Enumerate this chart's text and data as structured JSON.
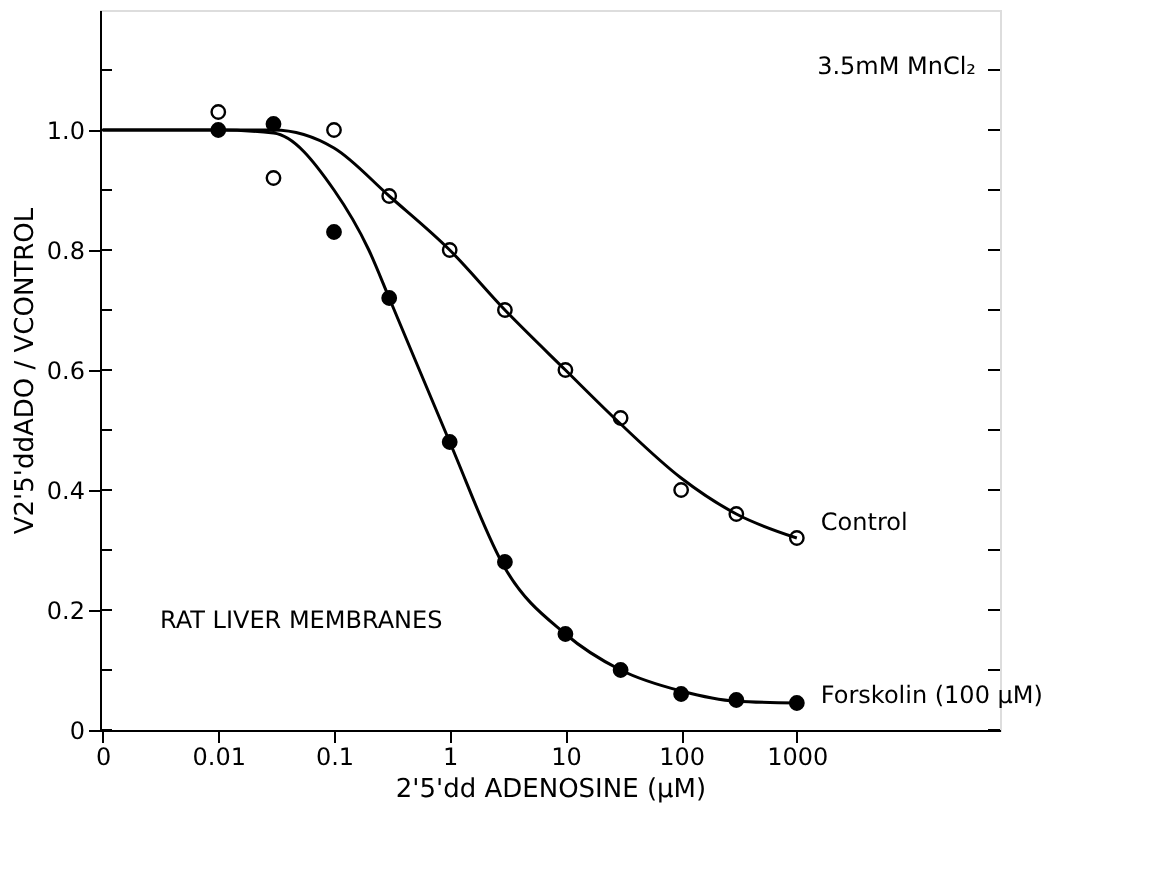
{
  "chart_data": {
    "type": "scatter",
    "xlabel": "2'5'dd ADENOSINE (μM)",
    "ylabel": "V2'5'ddADO / VCONTROL",
    "log": "x",
    "xlim": [
      0.00095,
      57000
    ],
    "xticks": [
      {
        "value": 0.001,
        "label": "0"
      },
      0.01,
      0.1,
      1,
      10,
      100,
      1000
    ],
    "ylim": [
      0,
      1.2
    ],
    "yticks": [
      0,
      {
        "value": 0.1,
        "label": null
      },
      0.2,
      {
        "value": 0.3,
        "label": null
      },
      0.4,
      {
        "value": 0.5,
        "label": null
      },
      0.6,
      {
        "value": 0.7,
        "label": null
      },
      0.8,
      {
        "value": 0.9,
        "label": null
      },
      {
        "value": 1.0,
        "label": "1.0"
      },
      {
        "value": 1.1,
        "label": null
      }
    ],
    "grid": false,
    "marker": "circle",
    "annotations": [
      "3.5mM MnCl₂",
      "RAT LIVER MEMBRANES"
    ],
    "series": [
      {
        "name": "Control",
        "color": "#000000",
        "x": [
          0.01,
          0.03,
          0.1,
          0.3,
          1,
          3,
          10,
          30,
          100,
          300,
          1000
        ],
        "values": [
          1.03,
          0.92,
          1.0,
          0.89,
          0.8,
          0.7,
          0.6,
          0.52,
          0.4,
          0.36,
          0.32
        ]
      },
      {
        "name": "Forskolin (100 μM)",
        "color": "#000000",
        "x": [
          0.01,
          0.03,
          0.1,
          0.3,
          1,
          3,
          10,
          30,
          100,
          300,
          1000
        ],
        "values": [
          1.0,
          1.01,
          0.83,
          0.72,
          0.48,
          0.28,
          0.16,
          0.1,
          0.06,
          0.05,
          0.045
        ]
      },
      {
        "type": "line",
        "marker": "none",
        "color": "#000000",
        "x": [
          0.001,
          0.01,
          0.03,
          0.1,
          0.3,
          1,
          3,
          10,
          30,
          100,
          300,
          1000
        ],
        "values": [
          1.0,
          1.0,
          1.0,
          0.97,
          0.89,
          0.8,
          0.7,
          0.6,
          0.51,
          0.42,
          0.36,
          0.32
        ]
      },
      {
        "type": "line",
        "marker": "none",
        "color": "#000000",
        "x": [
          0.001,
          0.01,
          0.03,
          0.1,
          0.2,
          0.3,
          1,
          3,
          10,
          30,
          100,
          300,
          1000
        ],
        "values": [
          1.0,
          1.0,
          0.995,
          0.9,
          0.8,
          0.72,
          0.48,
          0.27,
          0.16,
          0.1,
          0.065,
          0.048,
          0.045
        ]
      }
    ]
  }
}
